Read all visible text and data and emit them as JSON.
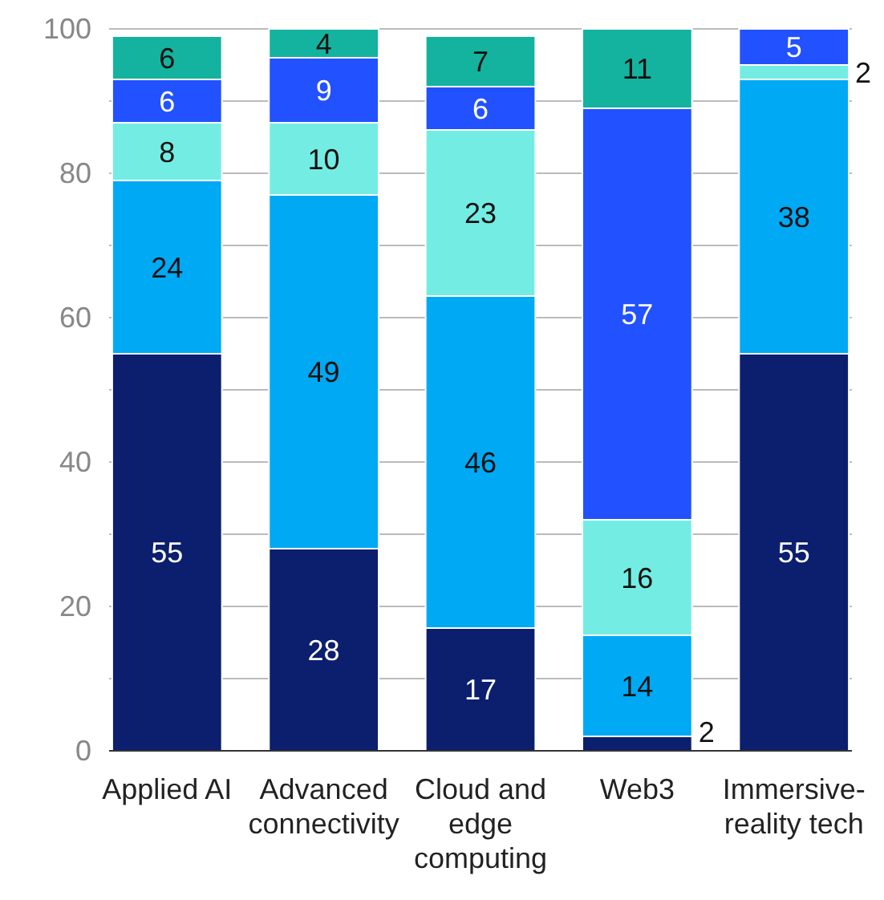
{
  "chart_data": {
    "type": "bar",
    "stacked": true,
    "categories": [
      "Applied AI",
      "Advanced connectivity",
      "Cloud and edge computing",
      "Web3",
      "Immersive-reality tech"
    ],
    "series": [
      {
        "color": "#0b1f6e",
        "values": [
          55,
          28,
          17,
          2,
          55
        ],
        "value_labels": [
          "55",
          "28",
          "17",
          "2",
          "55"
        ]
      },
      {
        "color": "#00a9f4",
        "values": [
          24,
          49,
          46,
          14,
          38
        ],
        "value_labels": [
          "24",
          "49",
          "46",
          "14",
          "38"
        ]
      },
      {
        "color": "#73ede3",
        "values": [
          8,
          10,
          23,
          16,
          2
        ],
        "value_labels": [
          "8",
          "10",
          "23",
          "16",
          "2"
        ]
      },
      {
        "color": "#2251ff",
        "values": [
          6,
          9,
          6,
          57,
          5
        ],
        "value_labels": [
          "6",
          "9",
          "6",
          "57",
          "5"
        ]
      },
      {
        "color": "#14b39f",
        "values": [
          6,
          4,
          7,
          11,
          null
        ],
        "value_labels": [
          "6",
          "4",
          "7",
          "11",
          null
        ]
      }
    ],
    "ylim": [
      0,
      100
    ],
    "yticks": [
      0,
      {
        "value": 10,
        "label": null
      },
      20,
      {
        "value": 30,
        "label": null
      },
      40,
      {
        "value": 50,
        "label": null
      },
      60,
      {
        "value": 70,
        "label": null
      },
      80,
      {
        "value": 90,
        "label": null
      },
      100
    ],
    "grid": "y"
  }
}
